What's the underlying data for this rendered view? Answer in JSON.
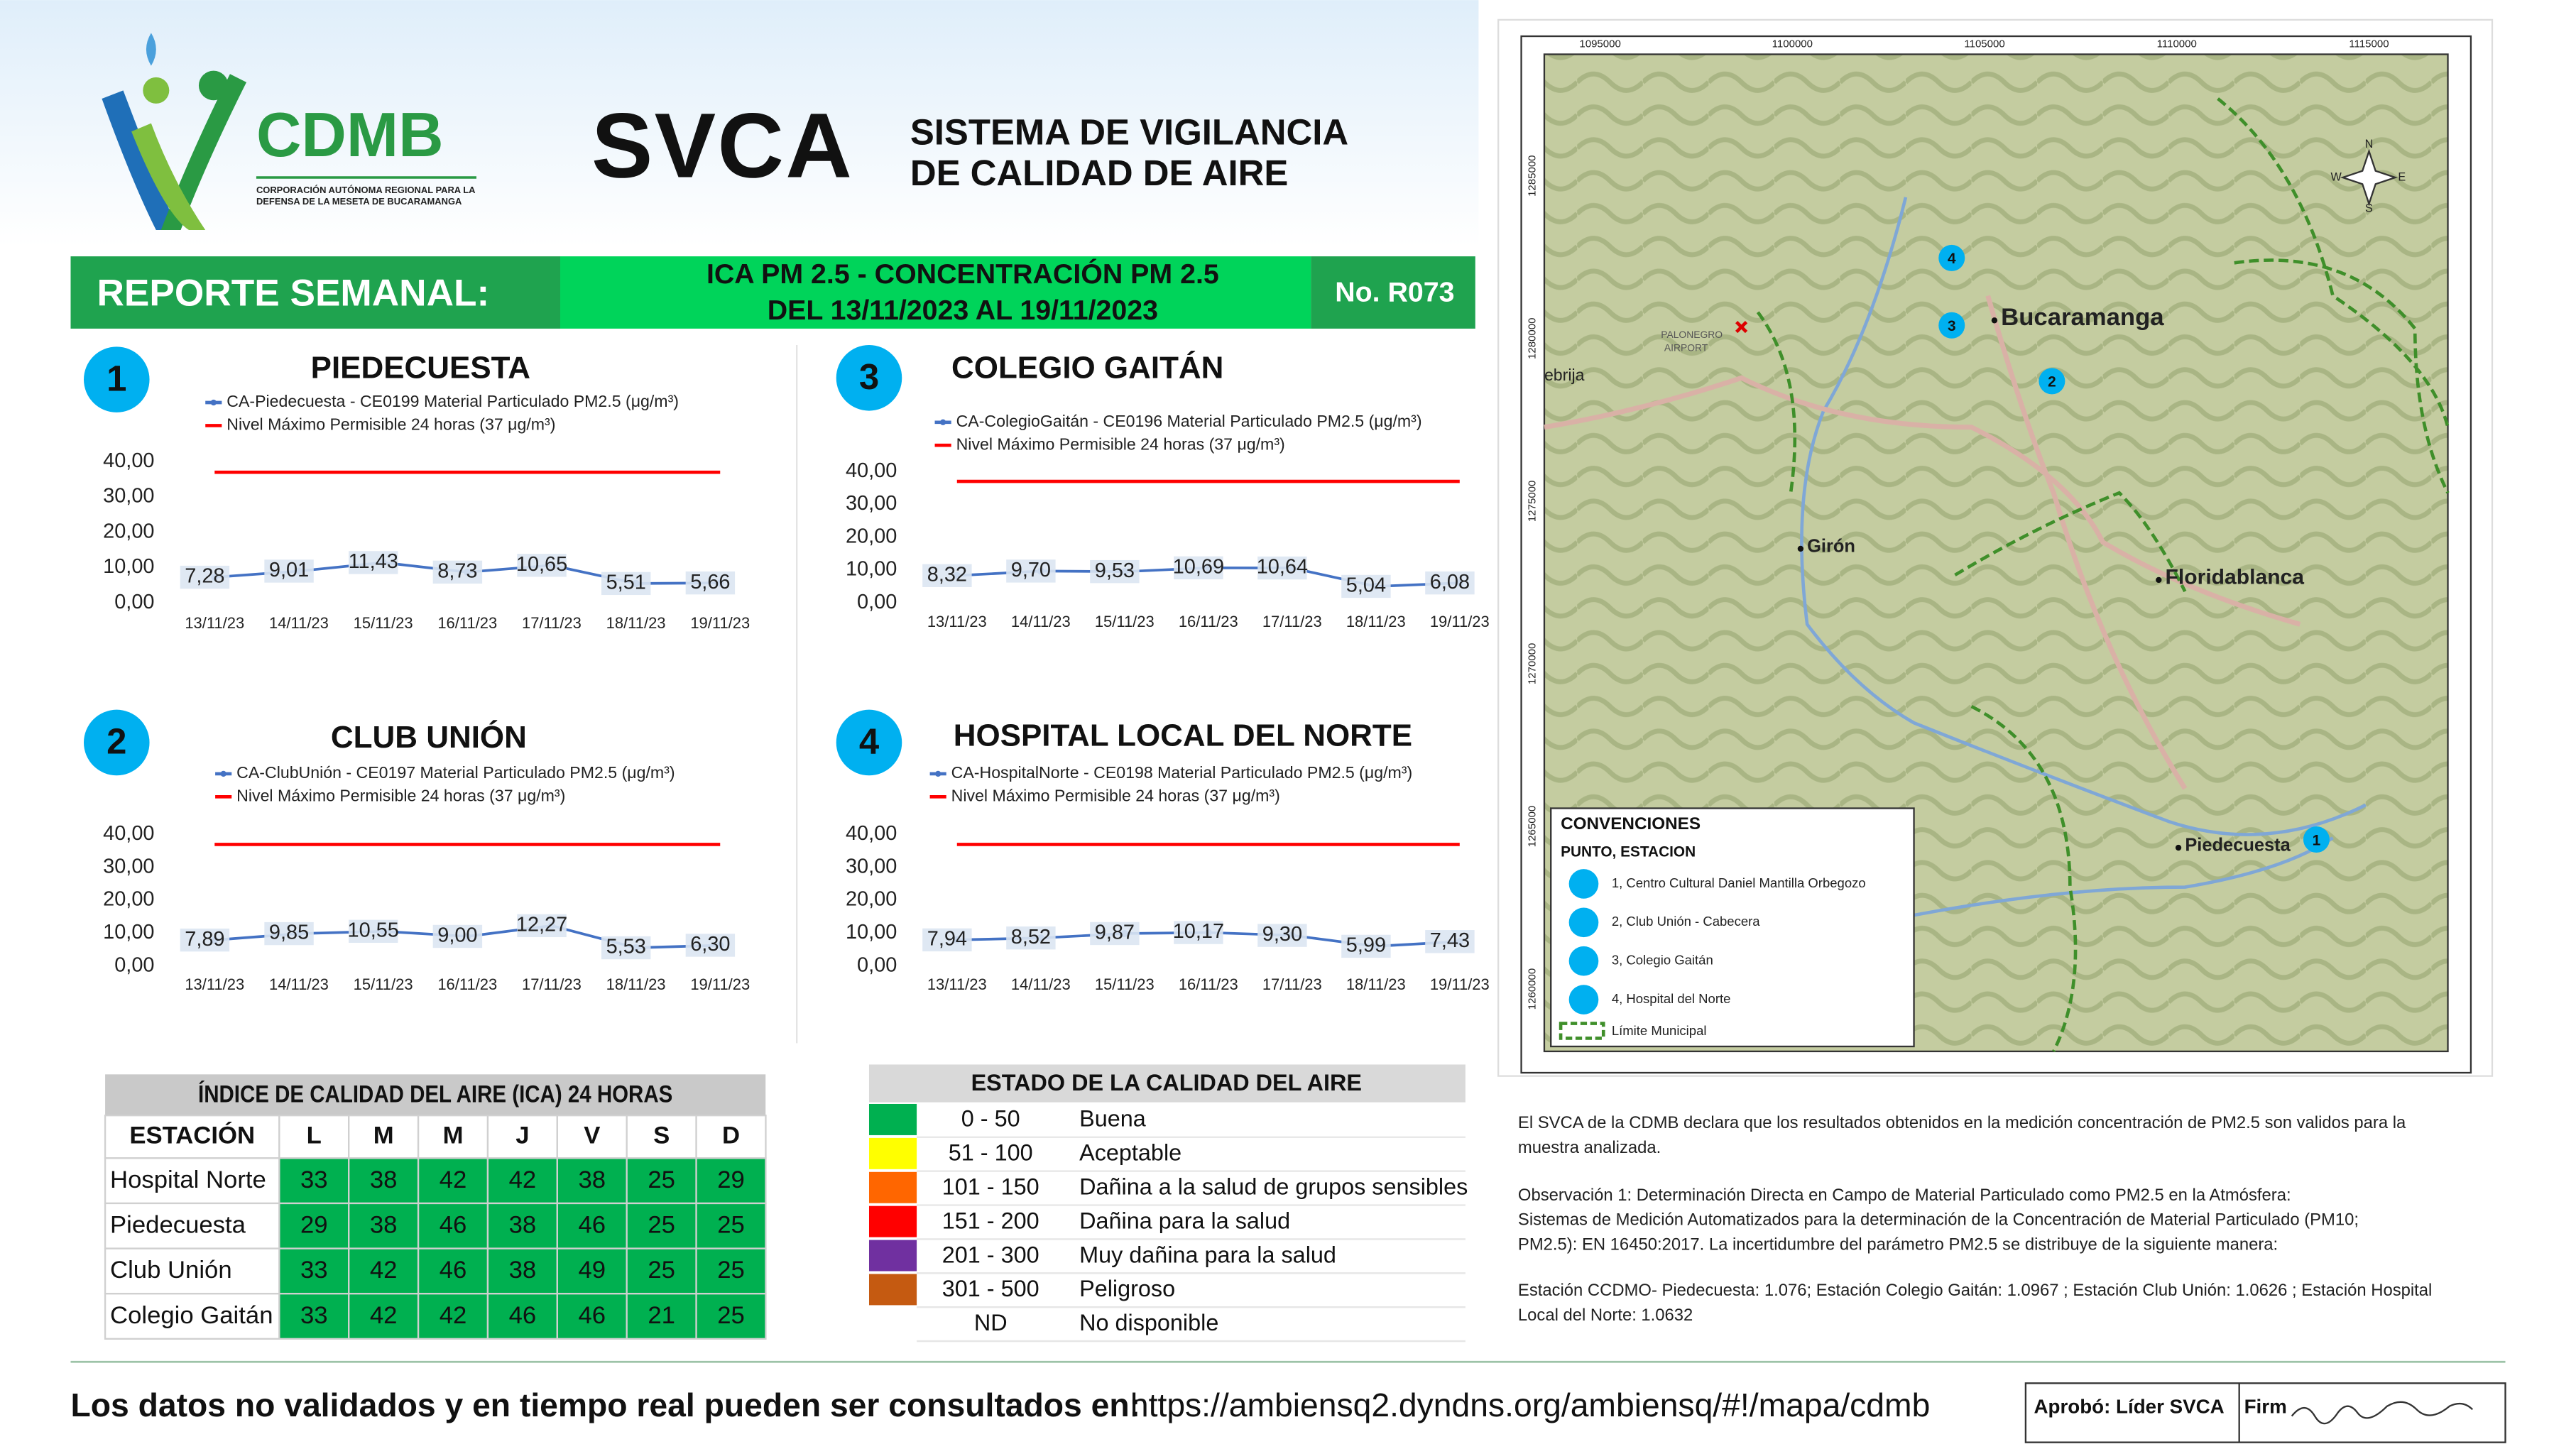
{
  "header": {
    "logo_text": "CDMB",
    "logo_sub1": "CORPORACIÓN AUTÓNOMA REGIONAL PARA LA",
    "logo_sub2": "DEFENSA DE LA MESETA DE BUCARAMANGA",
    "svca": "SVCA",
    "svca_sub1": "SISTEMA DE VIGILANCIA",
    "svca_sub2": "DE CALIDAD DE AIRE"
  },
  "report_bar": {
    "label": "REPORTE SEMANAL:",
    "title1": "ICA PM 2.5 - CONCENTRACIÓN PM 2.5",
    "title2": "DEL 13/11/2023 AL 19/11/2023",
    "number": "No. R073"
  },
  "chart_data": [
    {
      "type": "line",
      "number": "1",
      "title": "PIEDECUESTA",
      "categories": [
        "13/11/23",
        "14/11/23",
        "15/11/23",
        "16/11/23",
        "17/11/23",
        "18/11/23",
        "19/11/23"
      ],
      "series": [
        {
          "name": "CA-Piedecuesta - CE0199 Material Particulado PM2.5 (μg/m³)",
          "color": "#4472c4",
          "values": [
            7.28,
            9.01,
            11.43,
            8.73,
            10.65,
            5.51,
            5.66
          ],
          "value_labels": [
            "7,28",
            "9,01",
            "11,43",
            "8,73",
            "10,65",
            "5,51",
            "5,66"
          ]
        },
        {
          "name": "Nivel Máximo Permisible 24 horas (37 μg/m³)",
          "color": "#ff0000",
          "values": [
            37,
            37,
            37,
            37,
            37,
            37,
            37
          ]
        }
      ],
      "ylim": [
        0,
        40
      ],
      "yticks": [
        {
          "value": 0,
          "label": "0,00"
        },
        {
          "value": 10,
          "label": "10,00"
        },
        {
          "value": 20,
          "label": "20,00"
        },
        {
          "value": 30,
          "label": "30,00"
        },
        {
          "value": 40,
          "label": "40,00"
        }
      ]
    },
    {
      "type": "line",
      "number": "3",
      "title": "COLEGIO GAITÁN",
      "categories": [
        "13/11/23",
        "14/11/23",
        "15/11/23",
        "16/11/23",
        "17/11/23",
        "18/11/23",
        "19/11/23"
      ],
      "series": [
        {
          "name": "CA-ColegioGaitán - CE0196 Material Particulado PM2.5 (μg/m³)",
          "color": "#4472c4",
          "values": [
            8.32,
            9.7,
            9.53,
            10.69,
            10.64,
            5.04,
            6.08
          ],
          "value_labels": [
            "8,32",
            "9,70",
            "9,53",
            "10,69",
            "10,64",
            "5,04",
            "6,08"
          ]
        },
        {
          "name": "Nivel Máximo Permisible 24 horas (37 μg/m³)",
          "color": "#ff0000",
          "values": [
            37,
            37,
            37,
            37,
            37,
            37,
            37
          ]
        }
      ],
      "ylim": [
        0,
        40
      ],
      "yticks": [
        {
          "value": 0,
          "label": "0,00"
        },
        {
          "value": 10,
          "label": "10,00"
        },
        {
          "value": 20,
          "label": "20,00"
        },
        {
          "value": 30,
          "label": "30,00"
        },
        {
          "value": 40,
          "label": "40,00"
        }
      ]
    },
    {
      "type": "line",
      "number": "2",
      "title": "CLUB UNIÓN",
      "categories": [
        "13/11/23",
        "14/11/23",
        "15/11/23",
        "16/11/23",
        "17/11/23",
        "18/11/23",
        "19/11/23"
      ],
      "series": [
        {
          "name": "CA-ClubUnión - CE0197 Material Particulado PM2.5 (μg/m³)",
          "color": "#4472c4",
          "values": [
            7.89,
            9.85,
            10.55,
            9.0,
            12.27,
            5.53,
            6.3
          ],
          "value_labels": [
            "7,89",
            "9,85",
            "10,55",
            "9,00",
            "12,27",
            "5,53",
            "6,30"
          ]
        },
        {
          "name": "Nivel Máximo Permisible 24 horas (37 μg/m³)",
          "color": "#ff0000",
          "values": [
            37,
            37,
            37,
            37,
            37,
            37,
            37
          ]
        }
      ],
      "ylim": [
        0,
        40
      ],
      "yticks": [
        {
          "value": 0,
          "label": "0,00"
        },
        {
          "value": 10,
          "label": "10,00"
        },
        {
          "value": 20,
          "label": "20,00"
        },
        {
          "value": 30,
          "label": "30,00"
        },
        {
          "value": 40,
          "label": "40,00"
        }
      ]
    },
    {
      "type": "line",
      "number": "4",
      "title": "HOSPITAL LOCAL DEL NORTE",
      "categories": [
        "13/11/23",
        "14/11/23",
        "15/11/23",
        "16/11/23",
        "17/11/23",
        "18/11/23",
        "19/11/23"
      ],
      "series": [
        {
          "name": "CA-HospitalNorte - CE0198 Material Particulado PM2.5 (μg/m³)",
          "color": "#4472c4",
          "values": [
            7.94,
            8.52,
            9.87,
            10.17,
            9.3,
            5.99,
            7.43
          ],
          "value_labels": [
            "7,94",
            "8,52",
            "9,87",
            "10,17",
            "9,30",
            "5,99",
            "7,43"
          ]
        },
        {
          "name": "Nivel Máximo Permisible 24 horas (37 μg/m³)",
          "color": "#ff0000",
          "values": [
            37,
            37,
            37,
            37,
            37,
            37,
            37
          ]
        }
      ],
      "ylim": [
        0,
        40
      ],
      "yticks": [
        {
          "value": 0,
          "label": "0,00"
        },
        {
          "value": 10,
          "label": "10,00"
        },
        {
          "value": 20,
          "label": "20,00"
        },
        {
          "value": 30,
          "label": "30,00"
        },
        {
          "value": 40,
          "label": "40,00"
        }
      ]
    }
  ],
  "ica_table": {
    "title": "ÍNDICE DE CALIDAD DEL AIRE (ICA) 24 HORAS",
    "cell_color": "#00b050",
    "header": [
      "ESTACIÓN",
      "L",
      "M",
      "M",
      "J",
      "V",
      "S",
      "D"
    ],
    "rows": [
      [
        "Hospital Norte",
        33,
        38,
        42,
        42,
        38,
        25,
        29
      ],
      [
        "Piedecuesta",
        29,
        38,
        46,
        38,
        46,
        25,
        25
      ],
      [
        "Club Unión",
        33,
        42,
        46,
        38,
        49,
        25,
        25
      ],
      [
        "Colegio Gaitán",
        33,
        42,
        42,
        46,
        46,
        21,
        25
      ]
    ]
  },
  "estado_table": {
    "title": "ESTADO DE LA CALIDAD DEL AIRE",
    "rows": [
      {
        "color": "#00b050",
        "range": "0 - 50",
        "label": "Buena"
      },
      {
        "color": "#ffff00",
        "range": "51 - 100",
        "label": "Aceptable"
      },
      {
        "color": "#ff6600",
        "range": "101 - 150",
        "label": "Dañina a la salud de grupos sensibles"
      },
      {
        "color": "#ff0000",
        "range": "151 - 200",
        "label": "Dañina para la salud"
      },
      {
        "color": "#7030a0",
        "range": "201 - 300",
        "label": "Muy dañina para la salud"
      },
      {
        "color": "#c55a11",
        "range": "301 - 500",
        "label": "Peligroso"
      },
      {
        "range": "ND",
        "label": "No disponible"
      }
    ]
  },
  "map": {
    "x_labels": [
      "1095000",
      "1100000",
      "1105000",
      "1110000",
      "1115000"
    ],
    "y_labels": [
      "1285000",
      "1280000",
      "1275000",
      "1270000",
      "1265000",
      "1260000"
    ],
    "places": [
      "Bucaramanga",
      "Girón",
      "Floridablanca",
      "Piedecuesta",
      "ebrija",
      "PALONEGRO",
      "AIRPORT"
    ],
    "stations": [
      "4",
      "3",
      "2",
      "1"
    ],
    "compass": [
      "N",
      "E",
      "S",
      "W"
    ],
    "legend": {
      "title": "CONVENCIONES",
      "subtitle": "PUNTO, ESTACION",
      "items": [
        "1, Centro Cultural Daniel Mantilla Orbegozo",
        "2, Club Unión - Cabecera",
        "3, Colegio Gaitán",
        "4, Hospital del Norte"
      ],
      "boundary": "Límite Municipal"
    }
  },
  "notes": [
    "El SVCA  de la CDMB declara que los resultados obtenidos en la medición concentración de PM2.5 son validos para la",
    "muestra  analizada.",
    "Observación 1: Determinación Directa en Campo de Material Particulado como PM2.5 en la Atmósfera:",
    "Sistemas de Medición Automatizados para la  determinación de la Concentración de Material Particulado (PM10;",
    "PM2.5): EN 16450:2017. La incertidumbre del parámetro PM2.5 se distribuye de la siguiente manera:",
    "Estación CCDMO- Piedecuesta: 1.076; Estación Colegio Gaitán: 1.0967 ; Estación Club Unión: 1.0626 ; Estación Hospital",
    "Local del Norte: 1.0632"
  ],
  "footer": {
    "text": "Los datos no validados y en tiempo real pueden ser consultados en:",
    "url": "https://ambiensq2.dyndns.org/ambiensq/#!/mapa/cdmb",
    "approved": "Aprobó: Líder SVCA",
    "signature": "Firm"
  }
}
